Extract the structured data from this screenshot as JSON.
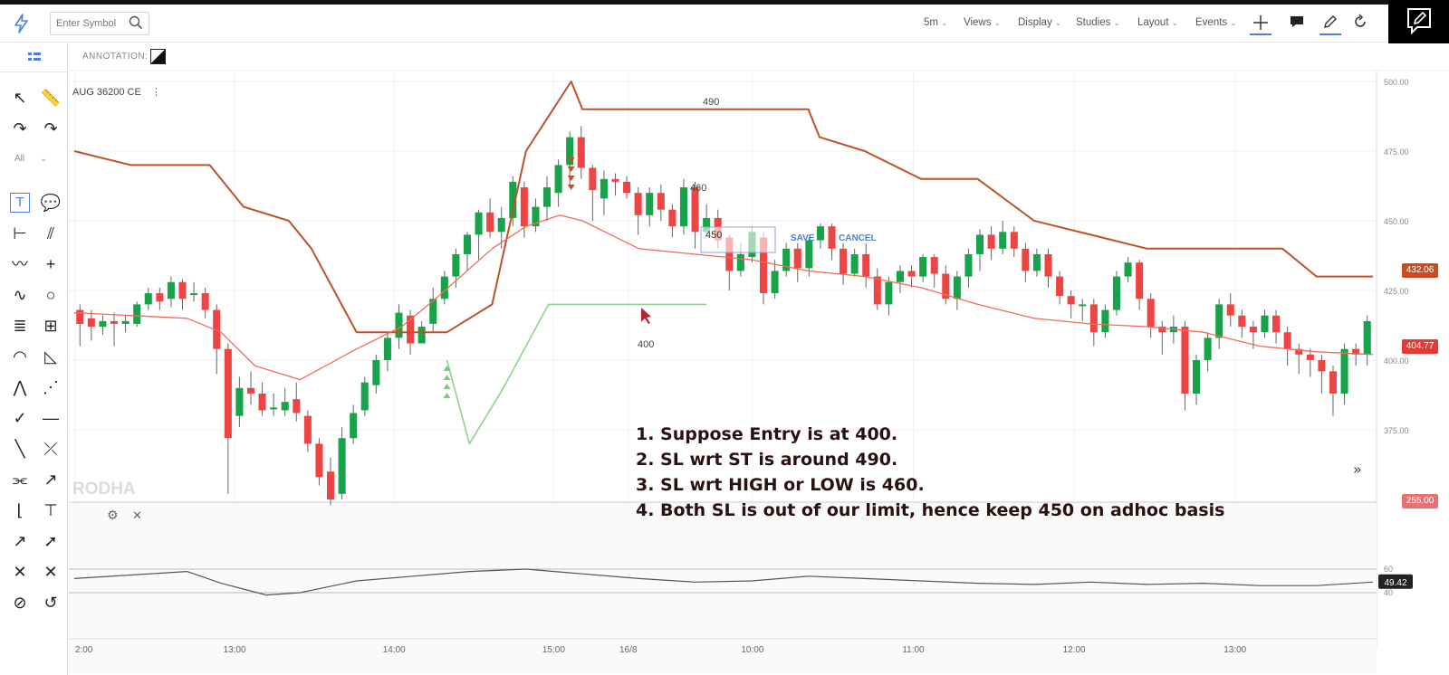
{
  "app": {
    "search_placeholder": "Enter Symbol",
    "symbol": "AUG 36200 CE",
    "annotation_label": "ANNOTATION:",
    "watermark": "RODHA"
  },
  "toolbar": {
    "items": [
      {
        "label": "5m",
        "icon": "chevron-down-icon"
      },
      {
        "label": "Views",
        "icon": "chevron-down-icon"
      },
      {
        "label": "Display",
        "icon": "chevron-down-icon"
      },
      {
        "label": "Studies",
        "icon": "chevron-down-icon"
      },
      {
        "label": "Layout",
        "icon": "chevron-down-icon"
      },
      {
        "label": "Events",
        "icon": "chevron-down-icon"
      }
    ],
    "icons": [
      "crosshair-icon",
      "chat-icon",
      "pencil-icon",
      "refresh-icon"
    ],
    "accent": "#4a7fe0"
  },
  "sidebar": {
    "filter_label": "All",
    "tools": [
      "cursor-icon",
      "ruler-icon",
      "arc-icon",
      "curve-icon",
      "text-icon",
      "callout-icon",
      "measure-icon",
      "parallel-lines-icon",
      "zigzag-icon",
      "crosshair-tool-icon",
      "squiggle-icon",
      "circle-icon",
      "fib-retracement-icon",
      "fib-grid-icon",
      "fib-arcs-icon",
      "gann-fan-icon",
      "pitchfork-icon",
      "speed-lines-icon",
      "check-icon",
      "horizontal-line-icon",
      "line-icon",
      "cross-icon",
      "channel-icon",
      "arrow-line-icon",
      "bracket-icon",
      "range-icon",
      "ray-icon",
      "arrow-icon",
      "clear-icon",
      "close-icon",
      "no-icon",
      "undo-icon"
    ]
  },
  "annotations": {
    "editor_value": "450",
    "save_label": "SAVE",
    "cancel_label": "CANCEL",
    "level_490": "490",
    "level_460": "460",
    "level_400": "400"
  },
  "overlay_notes": [
    "1. Suppose Entry is at 400.",
    "2. SL wrt ST is around 490.",
    "3. SL wrt HIGH or LOW is 460.",
    "4. Both SL is out of our limit, hence keep 450 on adhoc basis"
  ],
  "price_tags": [
    {
      "value": "432.06",
      "y": 432.06,
      "color": "#c84b21"
    },
    {
      "value": "404.77",
      "y": 404.77,
      "color": "#e53935"
    },
    {
      "value": "255.00",
      "y": 255.0,
      "color": "#e57373"
    }
  ],
  "chart_data": {
    "type": "candlestick",
    "y_axis": {
      "min": 350,
      "max": 500,
      "ticks": [
        "500.00",
        "475.00",
        "450.00",
        "425.00",
        "400.00",
        "375.00"
      ]
    },
    "x_ticks": [
      "2:00",
      "13:00",
      "14:00",
      "15:00",
      "16/8",
      "10:00",
      "11:00",
      "12:00",
      "13:00"
    ],
    "up_color": "#16a34a",
    "down_color": "#ef4444",
    "candles": [
      [
        418,
        413,
        420,
        405
      ],
      [
        415,
        412,
        418,
        407
      ],
      [
        412,
        414,
        416,
        409
      ],
      [
        414,
        413,
        417,
        405
      ],
      [
        413,
        414,
        416,
        410
      ],
      [
        413,
        420,
        421,
        412
      ],
      [
        420,
        424,
        426,
        418
      ],
      [
        424,
        421,
        426,
        418
      ],
      [
        422,
        428,
        430,
        419
      ],
      [
        428,
        422,
        429,
        418
      ],
      [
        424,
        424,
        428,
        421
      ],
      [
        424,
        418,
        426,
        415
      ],
      [
        418,
        404,
        420,
        395
      ],
      [
        404,
        372,
        406,
        352
      ],
      [
        380,
        390,
        394,
        376
      ],
      [
        390,
        388,
        396,
        384
      ],
      [
        388,
        382,
        392,
        380
      ],
      [
        383,
        383,
        388,
        380
      ],
      [
        382,
        385,
        390,
        380
      ],
      [
        386,
        381,
        392,
        378
      ],
      [
        380,
        370,
        382,
        367
      ],
      [
        370,
        358,
        372,
        355
      ],
      [
        360,
        350,
        365,
        348
      ],
      [
        352,
        372,
        376,
        350
      ],
      [
        372,
        381,
        384,
        370
      ],
      [
        382,
        392,
        394,
        380
      ],
      [
        391,
        400,
        402,
        388
      ],
      [
        400,
        408,
        410,
        396
      ],
      [
        408,
        417,
        420,
        404
      ],
      [
        416,
        406,
        418,
        402
      ],
      [
        406,
        412,
        414,
        406
      ],
      [
        413,
        422,
        426,
        410
      ],
      [
        422,
        430,
        432,
        420
      ],
      [
        430,
        438,
        440,
        426
      ],
      [
        438,
        445,
        446,
        432
      ],
      [
        445,
        453,
        454,
        436
      ],
      [
        453,
        446,
        458,
        444
      ],
      [
        446,
        451,
        455,
        440
      ],
      [
        451,
        464,
        466,
        448
      ],
      [
        462,
        448,
        464,
        444
      ],
      [
        448,
        455,
        458,
        446
      ],
      [
        455,
        462,
        466,
        450
      ],
      [
        460,
        470,
        472,
        455
      ],
      [
        470,
        480,
        482,
        462
      ],
      [
        480,
        469,
        484,
        465
      ],
      [
        469,
        461,
        470,
        450
      ],
      [
        458,
        465,
        468,
        452
      ],
      [
        465,
        464,
        467,
        459
      ],
      [
        464,
        460,
        466,
        458
      ],
      [
        460,
        452,
        462,
        445
      ],
      [
        452,
        460,
        462,
        448
      ],
      [
        460,
        454,
        463,
        450
      ],
      [
        454,
        448,
        456,
        444
      ],
      [
        448,
        462,
        465,
        445
      ],
      [
        462,
        446,
        464,
        440
      ],
      [
        446,
        451,
        456,
        444
      ],
      [
        451,
        443,
        454,
        440
      ],
      [
        444,
        432,
        445,
        425
      ],
      [
        432,
        438,
        442,
        430
      ],
      [
        437,
        446,
        448,
        435
      ],
      [
        444,
        424,
        446,
        420
      ],
      [
        424,
        432,
        436,
        422
      ],
      [
        432,
        440,
        442,
        430
      ],
      [
        440,
        433,
        442,
        428
      ],
      [
        433,
        443,
        444,
        430
      ],
      [
        443,
        448,
        449,
        440
      ],
      [
        448,
        440,
        449,
        436
      ],
      [
        440,
        431,
        442,
        427
      ],
      [
        431,
        438,
        440,
        430
      ],
      [
        438,
        430,
        442,
        426
      ],
      [
        430,
        420,
        433,
        418
      ],
      [
        420,
        428,
        430,
        416
      ],
      [
        428,
        432,
        434,
        424
      ],
      [
        432,
        430,
        434,
        426
      ],
      [
        430,
        437,
        438,
        428
      ],
      [
        437,
        431,
        438,
        426
      ],
      [
        431,
        422,
        434,
        420
      ],
      [
        422,
        430,
        432,
        418
      ],
      [
        430,
        438,
        440,
        426
      ],
      [
        438,
        445,
        447,
        432
      ],
      [
        445,
        440,
        448,
        436
      ],
      [
        440,
        446,
        450,
        438
      ],
      [
        446,
        440,
        448,
        437
      ],
      [
        440,
        432,
        442,
        428
      ],
      [
        432,
        438,
        440,
        430
      ],
      [
        438,
        430,
        440,
        426
      ],
      [
        430,
        423,
        432,
        420
      ],
      [
        423,
        420,
        425,
        415
      ],
      [
        420,
        420,
        422,
        414
      ],
      [
        420,
        410,
        422,
        405
      ],
      [
        410,
        418,
        420,
        408
      ],
      [
        418,
        430,
        432,
        416
      ],
      [
        430,
        435,
        437,
        428
      ],
      [
        435,
        422,
        436,
        418
      ],
      [
        422,
        412,
        424,
        408
      ],
      [
        412,
        410,
        414,
        402
      ],
      [
        410,
        412,
        416,
        406
      ],
      [
        412,
        388,
        414,
        382
      ],
      [
        388,
        400,
        402,
        384
      ],
      [
        400,
        408,
        410,
        396
      ],
      [
        408,
        420,
        422,
        404
      ],
      [
        420,
        416,
        424,
        412
      ],
      [
        416,
        412,
        418,
        408
      ],
      [
        412,
        410,
        414,
        404
      ],
      [
        410,
        416,
        418,
        408
      ],
      [
        416,
        410,
        418,
        406
      ],
      [
        410,
        404,
        412,
        398
      ],
      [
        404,
        402,
        406,
        395
      ],
      [
        402,
        400,
        404,
        394
      ],
      [
        400,
        396,
        402,
        388
      ],
      [
        396,
        388,
        398,
        380
      ],
      [
        388,
        404,
        406,
        384
      ],
      [
        404,
        402,
        406,
        398
      ],
      [
        402,
        414,
        416,
        398
      ]
    ],
    "supertrend_red": [
      [
        0,
        475
      ],
      [
        10,
        470
      ],
      [
        24,
        470
      ],
      [
        30,
        455
      ],
      [
        38,
        450
      ],
      [
        42,
        440
      ],
      [
        50,
        410
      ],
      [
        66,
        410
      ],
      [
        70,
        415
      ],
      [
        74,
        420
      ],
      [
        80,
        475
      ],
      [
        88,
        500
      ],
      [
        90,
        490
      ],
      [
        100,
        490
      ],
      [
        124,
        490
      ],
      [
        130,
        490
      ],
      [
        132,
        480
      ],
      [
        140,
        475
      ],
      [
        150,
        465
      ],
      [
        160,
        465
      ],
      [
        170,
        450
      ],
      [
        180,
        445
      ],
      [
        190,
        440
      ],
      [
        214,
        440
      ],
      [
        220,
        430
      ],
      [
        230,
        430
      ]
    ],
    "supertrend_green": [
      [
        66,
        400
      ],
      [
        70,
        370
      ],
      [
        76,
        390
      ],
      [
        84,
        420
      ],
      [
        90,
        420
      ],
      [
        108,
        420
      ],
      [
        112,
        420
      ]
    ],
    "ema": [
      [
        0,
        417
      ],
      [
        10,
        416
      ],
      [
        20,
        415
      ],
      [
        26,
        410
      ],
      [
        32,
        398
      ],
      [
        40,
        393
      ],
      [
        50,
        404
      ],
      [
        58,
        412
      ],
      [
        64,
        422
      ],
      [
        74,
        440
      ],
      [
        80,
        448
      ],
      [
        86,
        452
      ],
      [
        90,
        450
      ],
      [
        100,
        440
      ],
      [
        110,
        438
      ],
      [
        120,
        436
      ],
      [
        130,
        432
      ],
      [
        140,
        430
      ],
      [
        150,
        426
      ],
      [
        160,
        420
      ],
      [
        170,
        415
      ],
      [
        180,
        413
      ],
      [
        190,
        412
      ],
      [
        200,
        410
      ],
      [
        210,
        405
      ],
      [
        220,
        403
      ],
      [
        230,
        402
      ]
    ],
    "rsi": [
      [
        0,
        52
      ],
      [
        10,
        55
      ],
      [
        20,
        58
      ],
      [
        26,
        48
      ],
      [
        34,
        38
      ],
      [
        40,
        40
      ],
      [
        50,
        50
      ],
      [
        60,
        54
      ],
      [
        70,
        58
      ],
      [
        80,
        60
      ],
      [
        90,
        56
      ],
      [
        100,
        52
      ],
      [
        110,
        49
      ],
      [
        120,
        50
      ],
      [
        130,
        54
      ],
      [
        140,
        52
      ],
      [
        150,
        50
      ],
      [
        160,
        48
      ],
      [
        170,
        47
      ],
      [
        180,
        49
      ],
      [
        190,
        47
      ],
      [
        200,
        48
      ],
      [
        210,
        46
      ],
      [
        220,
        46
      ],
      [
        230,
        49
      ]
    ],
    "rsi_levels": {
      "upper": "60",
      "lower": "40",
      "last": "49.42"
    },
    "annotation_markers": {
      "buy_triangles_at": 66,
      "sell_triangles_at": 88
    }
  }
}
